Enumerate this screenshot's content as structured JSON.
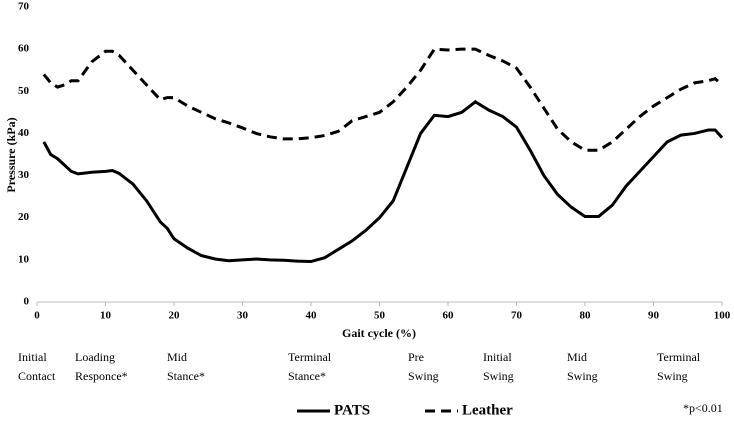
{
  "chart_data": {
    "type": "line",
    "y_label": "Pressure (kPa)",
    "x_label": "Gait cycle (%)",
    "x": [
      1,
      2,
      3,
      4,
      5,
      6,
      8,
      10,
      11,
      12,
      14,
      16,
      18,
      19,
      20,
      22,
      24,
      26,
      28,
      30,
      32,
      34,
      36,
      38,
      40,
      42,
      44,
      46,
      48,
      50,
      52,
      54,
      56,
      58,
      60,
      62,
      64,
      66,
      68,
      70,
      72,
      74,
      76,
      78,
      80,
      82,
      84,
      86,
      88,
      90,
      92,
      94,
      96,
      98,
      99,
      100
    ],
    "series": [
      {
        "name": "PATS",
        "color": "#000000",
        "dash": false,
        "values": [
          38,
          35,
          34,
          32.5,
          31,
          30.4,
          30.8,
          31,
          31.2,
          30.5,
          28,
          24,
          19,
          17.5,
          15,
          12.8,
          11,
          10.2,
          9.8,
          10,
          10.2,
          10,
          9.9,
          9.7,
          9.6,
          10.5,
          12.5,
          14.5,
          17,
          20,
          24,
          32,
          40,
          44.3,
          44,
          45,
          47.5,
          45.5,
          44,
          41.5,
          36,
          30,
          25.5,
          22.5,
          20.3,
          20.3,
          23,
          27.5,
          31,
          34.5,
          38,
          39.6,
          40,
          40.8,
          40.8,
          39
        ]
      },
      {
        "name": "Leather",
        "color": "#000000",
        "dash": true,
        "values": [
          54,
          52,
          51,
          51.5,
          52.5,
          52.5,
          57,
          59.5,
          59.5,
          58.5,
          55,
          51.5,
          48,
          48.5,
          48.5,
          46.5,
          45,
          43.5,
          42.5,
          41.3,
          40,
          39.2,
          38.7,
          38.7,
          39,
          39.5,
          40.5,
          43,
          44,
          45,
          47.5,
          51,
          55,
          60,
          59.8,
          60,
          60,
          58.5,
          57.2,
          55.5,
          51,
          46,
          41,
          38,
          36,
          36,
          38,
          41,
          44,
          46.5,
          48.5,
          50.5,
          52,
          52.5,
          53,
          51.5
        ]
      }
    ],
    "xlim": [
      0,
      100
    ],
    "xticks": [
      0,
      10,
      20,
      30,
      40,
      50,
      60,
      70,
      80,
      90,
      100
    ],
    "ylim": [
      0,
      70
    ],
    "yticks": [
      0,
      10,
      20,
      30,
      40,
      50,
      60,
      70
    ],
    "grid": false,
    "phases": [
      [
        "Initial",
        "Contact"
      ],
      [
        "Loading",
        "Responce*"
      ],
      [
        "Mid",
        "Stance*"
      ],
      [
        "Terminal",
        "Stance*"
      ],
      [
        "Pre",
        "Swing"
      ],
      [
        "Initial",
        "Swing"
      ],
      [
        "Mid",
        "Swing"
      ],
      [
        "Terminal",
        "Swing"
      ]
    ],
    "footnote": "*p<0.01"
  }
}
